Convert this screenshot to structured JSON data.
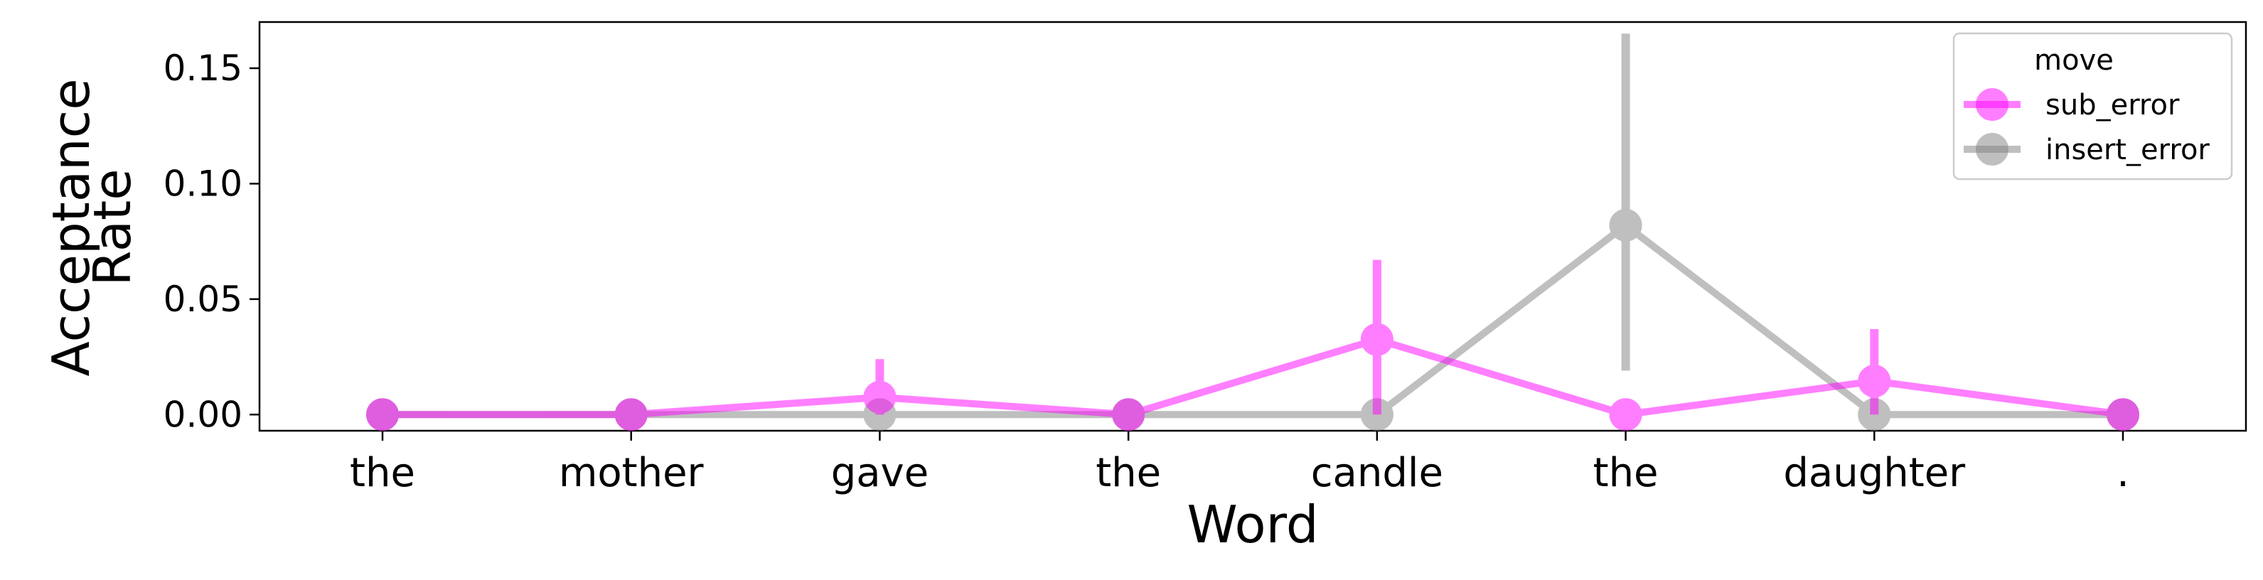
{
  "chart_data": {
    "type": "line",
    "categories": [
      "the",
      "mother",
      "gave",
      "the",
      "candle",
      "the",
      "daughter",
      "."
    ],
    "xlabel": "Word",
    "ylabel_lines": [
      "Acceptance",
      "Rate"
    ],
    "ylim": [
      -0.007,
      0.17
    ],
    "yticks": [
      0.0,
      0.05,
      0.1,
      0.15
    ],
    "ytick_labels": [
      "0.00",
      "0.05",
      "0.10",
      "0.15"
    ],
    "grid": false,
    "legend": {
      "title": "move",
      "placement": "top-right"
    },
    "series": [
      {
        "name": "sub_error",
        "color": "#ff00ff",
        "values": [
          0.0,
          0.0,
          0.0075,
          0.0,
          0.0325,
          0.0,
          0.0145,
          0.0
        ],
        "err_low": [
          0.0,
          0.0,
          0.0,
          0.0,
          0.0,
          0.0,
          0.0,
          0.0
        ],
        "err_high": [
          0.0,
          0.0,
          0.024,
          0.0,
          0.067,
          0.0,
          0.037,
          0.0
        ]
      },
      {
        "name": "insert_error",
        "color": "#808080",
        "values": [
          0.0,
          0.0,
          0.0,
          0.0,
          0.0,
          0.082,
          0.0,
          0.0
        ],
        "err_low": [
          0.0,
          0.0,
          0.0,
          0.0,
          0.0,
          0.019,
          0.0,
          0.0
        ],
        "err_high": [
          0.0,
          0.0,
          0.0,
          0.0,
          0.0,
          0.165,
          0.0,
          0.0
        ]
      }
    ]
  }
}
